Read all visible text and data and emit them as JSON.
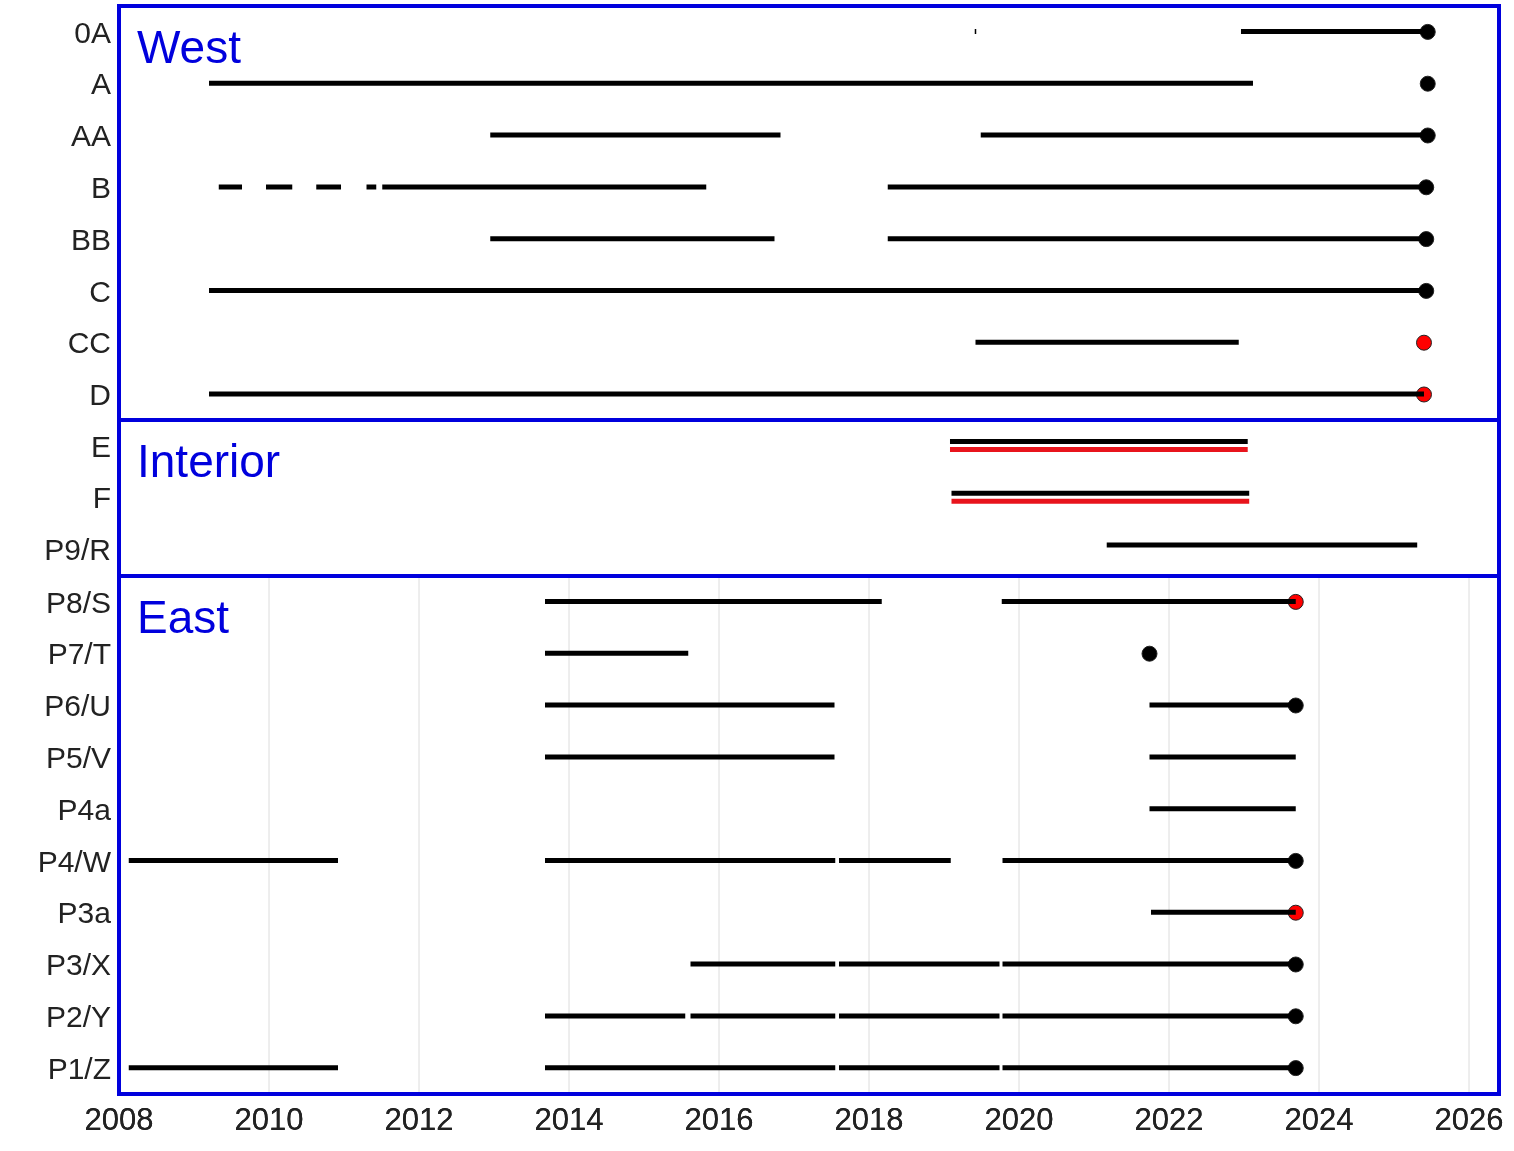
{
  "chart_data": [
    {
      "type": "bar",
      "orientation": "horizontal",
      "annotations": [
        "West"
      ],
      "categories": [
        "0A",
        "A",
        "AA",
        "B",
        "BB",
        "C",
        "CC",
        "D"
      ],
      "xlim": [
        2008,
        2026.4
      ],
      "xticks": [
        2008,
        2010,
        2012,
        2014,
        2016,
        2018,
        2020,
        2022,
        2024,
        2026
      ],
      "grid": true,
      "tick_labels": "y",
      "series": [
        {
          "color": "#000000",
          "base": [
            2019.41,
            2009.2,
            2012.95,
            2009.33,
            2012.95,
            2009.2,
            2019.42,
            2009.2
          ],
          "values": [
            0.02,
            13.92,
            3.87,
            0.31,
            3.79,
            16.23,
            3.51,
            16.2
          ]
        },
        {
          "color": "#000000",
          "base": [
            2022.96,
            null,
            2019.49,
            2009.96,
            2018.25,
            null,
            null,
            null
          ],
          "values": [
            2.49,
            null,
            5.96,
            0.35,
            7.18,
            null,
            null,
            null
          ]
        },
        {
          "color": "#000000",
          "base": [
            null,
            null,
            null,
            2010.63,
            null,
            null,
            null,
            null
          ],
          "values": [
            null,
            null,
            null,
            0.33,
            null,
            null,
            null,
            null
          ]
        },
        {
          "color": "#000000",
          "base": [
            null,
            null,
            null,
            2011.3,
            null,
            null,
            null,
            null
          ],
          "values": [
            null,
            null,
            null,
            0.13,
            null,
            null,
            null,
            null
          ]
        },
        {
          "color": "#000000",
          "base": [
            null,
            null,
            null,
            2011.51,
            null,
            null,
            null,
            null
          ],
          "values": [
            null,
            null,
            null,
            4.32,
            null,
            null,
            null,
            null
          ]
        },
        {
          "color": "#000000",
          "base": [
            null,
            null,
            null,
            2018.25,
            null,
            null,
            null,
            null
          ],
          "values": [
            null,
            null,
            null,
            7.18,
            null,
            null,
            null,
            null
          ]
        },
        {
          "type": "scatter",
          "x": [
            "0A",
            "A",
            "AA",
            "B",
            "BB",
            "C",
            "CC",
            "D"
          ],
          "values": [
            2025.45,
            2025.45,
            2025.45,
            2025.43,
            2025.43,
            2025.43,
            2025.4,
            2025.4
          ],
          "colors": [
            "#000000",
            "#000000",
            "#000000",
            "#000000",
            "#000000",
            "#000000",
            "#ff0000",
            "#ff0000"
          ]
        }
      ]
    },
    {
      "type": "bar",
      "orientation": "horizontal",
      "annotations": [
        "Interior"
      ],
      "categories": [
        "E",
        "F",
        "P9/R"
      ],
      "xlim": [
        2008,
        2026.4
      ],
      "xticks": [
        2008,
        2010,
        2012,
        2014,
        2016,
        2018,
        2020,
        2022,
        2024,
        2026
      ],
      "grid": true,
      "tick_labels": "y",
      "series": [
        {
          "color": "#000000",
          "base": [
            2019.08,
            2019.1,
            2021.17
          ],
          "values": [
            3.97,
            3.97,
            4.14
          ]
        },
        {
          "color": "#e8141c",
          "base": [
            2019.08,
            2019.1,
            null
          ],
          "values": [
            3.97,
            3.97,
            null
          ]
        }
      ]
    },
    {
      "type": "bar",
      "orientation": "horizontal",
      "annotations": [
        "East"
      ],
      "categories": [
        "P8/S",
        "P7/T",
        "P6/U",
        "P5/V",
        "P4a",
        "P4/W",
        "P3a",
        "P3/X",
        "P2/Y",
        "P1/Z"
      ],
      "xlim": [
        2008,
        2026.4
      ],
      "xticks": [
        2008,
        2010,
        2012,
        2014,
        2016,
        2018,
        2020,
        2022,
        2024,
        2026
      ],
      "grid": true,
      "series": [
        {
          "color": "#000000",
          "base": [
            2013.68,
            2013.68,
            2013.68,
            2013.68,
            2021.74,
            2008.13,
            2021.76,
            2015.62,
            2013.68,
            2008.13
          ],
          "values": [
            4.49,
            1.91,
            3.86,
            3.86,
            1.95,
            2.79,
            1.93,
            1.93,
            1.87,
            2.79
          ]
        },
        {
          "color": "#000000",
          "base": [
            2019.77,
            null,
            2021.74,
            2021.74,
            null,
            2013.68,
            null,
            2017.6,
            2015.62,
            2013.68
          ],
          "values": [
            3.92,
            null,
            1.95,
            1.95,
            null,
            3.87,
            null,
            2.14,
            1.93,
            3.87
          ]
        },
        {
          "color": "#000000",
          "base": [
            null,
            null,
            null,
            null,
            null,
            2017.6,
            null,
            2019.78,
            2017.6,
            2017.6
          ],
          "values": [
            null,
            null,
            null,
            null,
            null,
            1.49,
            null,
            3.91,
            2.14,
            2.14
          ]
        },
        {
          "color": "#000000",
          "base": [
            null,
            null,
            null,
            null,
            null,
            2019.78,
            null,
            null,
            2019.78,
            2019.78
          ],
          "values": [
            null,
            null,
            null,
            null,
            null,
            3.91,
            null,
            null,
            3.91,
            3.91
          ]
        },
        {
          "type": "scatter",
          "x": [
            "P8/S",
            "P7/T",
            "P6/U",
            "P4/W",
            "P3a",
            "P3/X",
            "P2/Y",
            "P1/Z"
          ],
          "values": [
            2023.69,
            2021.74,
            2023.69,
            2023.69,
            2023.69,
            2023.69,
            2023.69,
            2023.69
          ],
          "colors": [
            "#ff0000",
            "#000000",
            "#000000",
            "#000000",
            "#ff0000",
            "#000000",
            "#000000",
            "#000000"
          ]
        }
      ]
    }
  ]
}
